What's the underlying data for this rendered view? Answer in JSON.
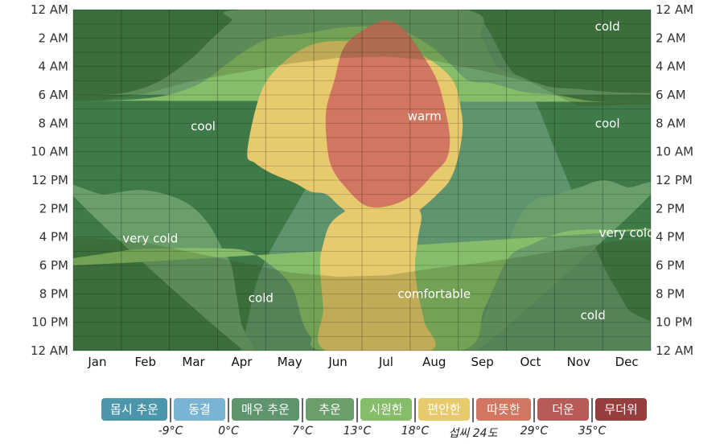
{
  "chart_data": {
    "type": "heatmap",
    "title": "",
    "x_categories": [
      "Jan",
      "Feb",
      "Mar",
      "Apr",
      "May",
      "Jun",
      "Jul",
      "Aug",
      "Sep",
      "Oct",
      "Nov",
      "Dec"
    ],
    "y_tick_labels": [
      "12 AM",
      "2 AM",
      "4 AM",
      "6 AM",
      "8 AM",
      "10 AM",
      "12 PM",
      "2 PM",
      "4 PM",
      "6 PM",
      "8 PM",
      "10 PM",
      "12 AM"
    ],
    "y_range_hours": [
      0,
      24
    ],
    "zone_labels": [
      {
        "label": "cold",
        "month": 11.1,
        "hour": 22.8
      },
      {
        "label": "cool",
        "month": 2.7,
        "hour": 15.8
      },
      {
        "label": "warm",
        "month": 7.3,
        "hour": 16.5
      },
      {
        "label": "cool",
        "month": 11.1,
        "hour": 16.0
      },
      {
        "label": "very cold",
        "month": 1.6,
        "hour": 7.9
      },
      {
        "label": "very cold",
        "month": 11.5,
        "hour": 8.3
      },
      {
        "label": "comfortable",
        "month": 7.5,
        "hour": 4.0
      },
      {
        "label": "cold",
        "month": 3.9,
        "hour": 3.7
      },
      {
        "label": "cold",
        "month": 10.8,
        "hour": 2.5
      }
    ],
    "bands": [
      {
        "name": "vcold",
        "color": "#5f956e",
        "upper": [
          [
            0,
            0
          ],
          [
            15,
            0
          ],
          [
            45,
            0
          ],
          [
            75,
            0
          ],
          [
            105,
            0
          ],
          [
            110,
            2
          ],
          [
            120,
            6
          ],
          [
            150,
            12
          ],
          [
            180,
            18
          ],
          [
            200,
            24
          ],
          [
            250,
            24
          ],
          [
            275,
            20
          ],
          [
            290,
            18
          ],
          [
            305,
            14
          ],
          [
            320,
            10
          ],
          [
            335,
            6
          ],
          [
            350,
            3
          ],
          [
            365,
            0
          ]
        ]
      },
      {
        "name": "cold",
        "color": "#6a9f6c",
        "upper": [
          [
            0,
            10.9
          ],
          [
            20,
            11
          ],
          [
            45,
            11.3
          ],
          [
            70,
            10.5
          ],
          [
            85,
            9
          ],
          [
            95,
            7
          ],
          [
            100,
            6
          ],
          [
            103,
            4
          ],
          [
            106,
            2
          ],
          [
            108,
            0
          ]
        ]
      },
      {
        "name": "cold",
        "color": "#6a9f6c",
        "upper": [
          [
            255,
            0
          ],
          [
            262,
            3
          ],
          [
            270,
            6
          ],
          [
            280,
            9
          ],
          [
            290,
            10.5
          ],
          [
            305,
            11
          ],
          [
            320,
            11.5
          ],
          [
            335,
            12
          ],
          [
            350,
            11.5
          ],
          [
            365,
            11
          ]
        ]
      },
      {
        "name": "cold",
        "color": "#6a9f6c",
        "upper": [
          [
            0,
            18
          ],
          [
            15,
            18
          ],
          [
            35,
            18.2
          ],
          [
            55,
            19
          ],
          [
            75,
            20.6
          ],
          [
            88,
            22
          ],
          [
            100,
            23.2
          ],
          [
            107,
            24
          ],
          [
            245,
            24
          ],
          [
            258,
            22
          ],
          [
            268,
            20
          ],
          [
            280,
            19.4
          ],
          [
            300,
            18.6
          ],
          [
            320,
            18.4
          ],
          [
            340,
            18.2
          ],
          [
            365,
            18
          ]
        ]
      },
      {
        "name": "cool",
        "color": "#86bd6b",
        "upper": [
          [
            0,
            6
          ],
          [
            30,
            7
          ],
          [
            60,
            7.2
          ],
          [
            90,
            7.2
          ],
          [
            110,
            7
          ],
          [
            125,
            6
          ],
          [
            135,
            5
          ],
          [
            140,
            4
          ],
          [
            145,
            2
          ],
          [
            150,
            1
          ],
          [
            160,
            0
          ],
          [
            245,
            0
          ],
          [
            260,
            3
          ],
          [
            275,
            6.5
          ],
          [
            290,
            7.5
          ],
          [
            305,
            8.2
          ],
          [
            320,
            8.5
          ],
          [
            345,
            8.5
          ],
          [
            365,
            8.5
          ]
        ]
      },
      {
        "name": "cool",
        "color": "#86bd6b",
        "upper": [
          [
            0,
            17.6
          ],
          [
            20,
            17.6
          ],
          [
            40,
            17.7
          ],
          [
            60,
            18
          ],
          [
            80,
            18.8
          ],
          [
            95,
            20
          ],
          [
            110,
            21.2
          ],
          [
            125,
            22
          ],
          [
            145,
            22.3
          ],
          [
            175,
            22.8
          ],
          [
            205,
            22.6
          ],
          [
            225,
            21.5
          ],
          [
            240,
            20
          ],
          [
            250,
            19
          ],
          [
            265,
            18.8
          ],
          [
            285,
            18.2
          ],
          [
            305,
            18
          ],
          [
            325,
            17.6
          ],
          [
            345,
            17.5
          ],
          [
            365,
            17.5
          ]
        ]
      },
      {
        "name": "comfortable",
        "color": "#e8ca6e",
        "upper": [
          [
            110,
            14
          ],
          [
            118,
            18
          ],
          [
            130,
            20
          ],
          [
            150,
            21.5
          ],
          [
            175,
            21.8
          ],
          [
            205,
            21.5
          ],
          [
            225,
            20.5
          ],
          [
            240,
            19
          ],
          [
            245,
            17
          ],
          [
            246,
            15.5
          ],
          [
            243,
            13.5
          ],
          [
            238,
            12
          ],
          [
            230,
            11
          ],
          [
            220,
            10
          ],
          [
            210,
            9.2
          ],
          [
            200,
            9
          ],
          [
            185,
            8.8
          ],
          [
            170,
            10
          ],
          [
            160,
            11
          ],
          [
            150,
            11.2
          ],
          [
            140,
            11.8
          ],
          [
            125,
            12.5
          ],
          [
            115,
            13.2
          ]
        ]
      },
      {
        "name": "comfortable",
        "color": "#e8ca6e",
        "upper": [
          [
            160,
            0
          ],
          [
            158,
            3
          ],
          [
            156,
            6
          ],
          [
            158,
            7.5
          ],
          [
            163,
            9
          ],
          [
            175,
            10
          ],
          [
            188,
            10.5
          ],
          [
            200,
            10.5
          ],
          [
            215,
            10.2
          ],
          [
            220,
            9.5
          ],
          [
            218,
            8
          ],
          [
            216,
            6
          ],
          [
            218,
            4
          ],
          [
            222,
            2
          ],
          [
            225,
            0
          ]
        ]
      },
      {
        "name": "warm",
        "color": "#d17661",
        "upper": [
          [
            165,
            19
          ],
          [
            172,
            21.5
          ],
          [
            190,
            23
          ],
          [
            200,
            23.2
          ],
          [
            210,
            22.5
          ],
          [
            222,
            20.6
          ],
          [
            230,
            19
          ],
          [
            235,
            17
          ],
          [
            238,
            15
          ],
          [
            236,
            13.5
          ],
          [
            228,
            12.5
          ],
          [
            215,
            11
          ],
          [
            200,
            10.2
          ],
          [
            185,
            10.2
          ],
          [
            172,
            11.5
          ],
          [
            163,
            13
          ],
          [
            160,
            15
          ],
          [
            160,
            17
          ]
        ]
      }
    ],
    "night_color": "#33440f",
    "night_opacity": 0.22,
    "sunset_hour": [
      17.6,
      18.1,
      19.0,
      19.6,
      20.2,
      20.6,
      20.7,
      20.4,
      19.7,
      18.9,
      17.2,
      17.3
    ],
    "sunrise_hour": [
      7.9,
      7.6,
      6.9,
      6.2,
      5.5,
      5.2,
      5.3,
      5.8,
      6.2,
      6.7,
      7.3,
      7.8
    ]
  },
  "legend": {
    "items": [
      {
        "label": "몹시 추운",
        "color": "#4c96ab"
      },
      {
        "label": "동결",
        "color": "#7ab4d2"
      },
      {
        "label": "매우 추운",
        "color": "#5f956e"
      },
      {
        "label": "추운",
        "color": "#6a9f6c"
      },
      {
        "label": "시원한",
        "color": "#86bd6b"
      },
      {
        "label": "편안한",
        "color": "#e8ca6e"
      },
      {
        "label": "따뜻한",
        "color": "#d17661"
      },
      {
        "label": "더운",
        "color": "#b85b57"
      },
      {
        "label": "무더위",
        "color": "#963d3e"
      }
    ],
    "thresholds": [
      "-9°C",
      "0°C",
      "7°C",
      "13°C",
      "18°C",
      "섭씨 24도",
      "29°C",
      "35°C"
    ]
  }
}
